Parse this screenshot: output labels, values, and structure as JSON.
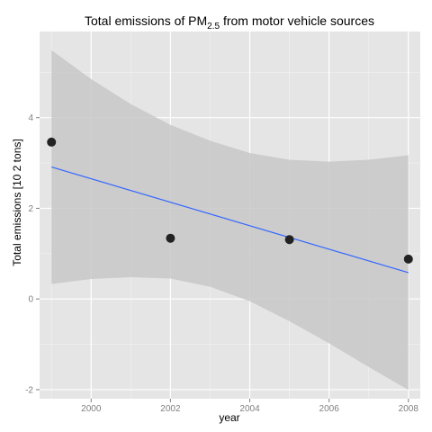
{
  "chart_data": {
    "type": "scatter",
    "title": "Total emissions of PM",
    "title_subscript": "2.5",
    "title_suffix": " from motor vehicle sources",
    "xlabel": "year",
    "ylabel": "Total emissions [10  2 tons]",
    "xlim": [
      1998.7,
      2008.3
    ],
    "ylim": [
      -2.2,
      5.9
    ],
    "x_ticks": [
      2000,
      2002,
      2004,
      2006,
      2008
    ],
    "y_ticks": [
      -2,
      0,
      2,
      4
    ],
    "grid": true,
    "points": [
      {
        "x": 1999,
        "y": 3.46
      },
      {
        "x": 2002,
        "y": 1.34
      },
      {
        "x": 2005,
        "y": 1.31
      },
      {
        "x": 2008,
        "y": 0.88
      }
    ],
    "fit_line": {
      "x": [
        1999,
        2008
      ],
      "y": [
        2.91,
        0.58
      ]
    },
    "confidence_band": {
      "x": [
        1999,
        2000,
        2001,
        2002,
        2003,
        2004,
        2005,
        2006,
        2007,
        2008
      ],
      "upper": [
        5.49,
        4.85,
        4.3,
        3.84,
        3.49,
        3.22,
        3.07,
        3.03,
        3.07,
        3.17
      ],
      "lower": [
        0.33,
        0.44,
        0.48,
        0.45,
        0.27,
        -0.05,
        -0.49,
        -0.98,
        -1.5,
        -2.01
      ]
    },
    "colors": {
      "panel": "#e5e5e5",
      "grid": "#ffffff",
      "band": "#c8c8c8",
      "line": "#3366ff",
      "point": "#222222"
    }
  }
}
